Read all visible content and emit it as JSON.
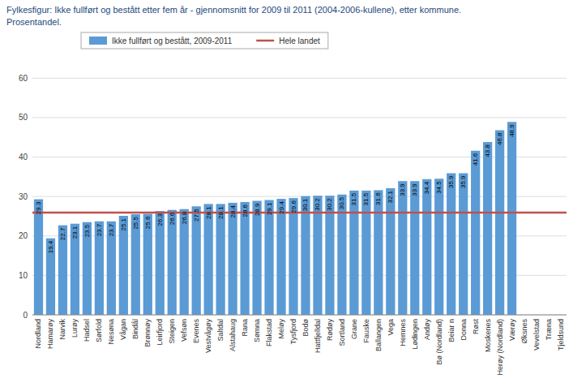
{
  "chart_data": {
    "type": "bar",
    "title": "Fylkesfigur: Ikke fullført og bestått etter fem år - gjennomsnitt for 2009 til 2011 (2004-2006-kullene), etter kommune.",
    "subtitle": "Prosentandel.",
    "categories": [
      "Nordland",
      "Hamarøy",
      "Narvik",
      "Lurøy",
      "Hadsel",
      "Sørfold",
      "Nesøna",
      "Vågan",
      "Bindål",
      "Brønnøy",
      "Leirfjord",
      "Steigen",
      "Vefsøn",
      "Evenes",
      "Vestvågøy",
      "Saltdal",
      "Alstahaug",
      "Rana",
      "Sømna",
      "Flakstad",
      "Meløy",
      "Tysfjord",
      "Bodø",
      "Hattfjelldal",
      "Rødøy",
      "Sortland",
      "Grane",
      "Fauske",
      "Ballangen",
      "Vega",
      "Hemnes",
      "Lødingen",
      "Andøy",
      "Bø (Nordland)",
      "Beiar n",
      "Donna",
      "Røst",
      "Moskenes",
      "Herøy (Nordland)",
      "Værøy",
      "Øksnes",
      "Vevelstad",
      "Træna",
      "Tjeldsund"
    ],
    "series": [
      {
        "name": "Ikke fullført og bestått, 2009-2011",
        "type": "bar",
        "color": "#5B9BD5",
        "values": [
          29.3,
          19.4,
          22.7,
          23.1,
          23.5,
          23.7,
          23.7,
          25.1,
          25.5,
          25.6,
          26.3,
          26.6,
          26.8,
          27.5,
          28.1,
          28.1,
          28.4,
          28.6,
          28.9,
          29.1,
          29.4,
          29.6,
          30.1,
          30.2,
          30.2,
          30.5,
          31.5,
          31.5,
          31.6,
          32.1,
          33.9,
          33.9,
          34.4,
          34.5,
          35.9,
          35.9,
          41.6,
          43.8,
          46.8,
          48.9,
          0.0,
          0.0,
          0.0,
          0.0
        ]
      },
      {
        "name": "Hele landet",
        "type": "hline",
        "color": "#C0504D",
        "value": 25.9
      }
    ],
    "ylim": [
      0,
      65
    ],
    "yticks": [
      0,
      10,
      20,
      30,
      40,
      50,
      60
    ],
    "grid": true,
    "legend": "top",
    "data_labels": true
  }
}
